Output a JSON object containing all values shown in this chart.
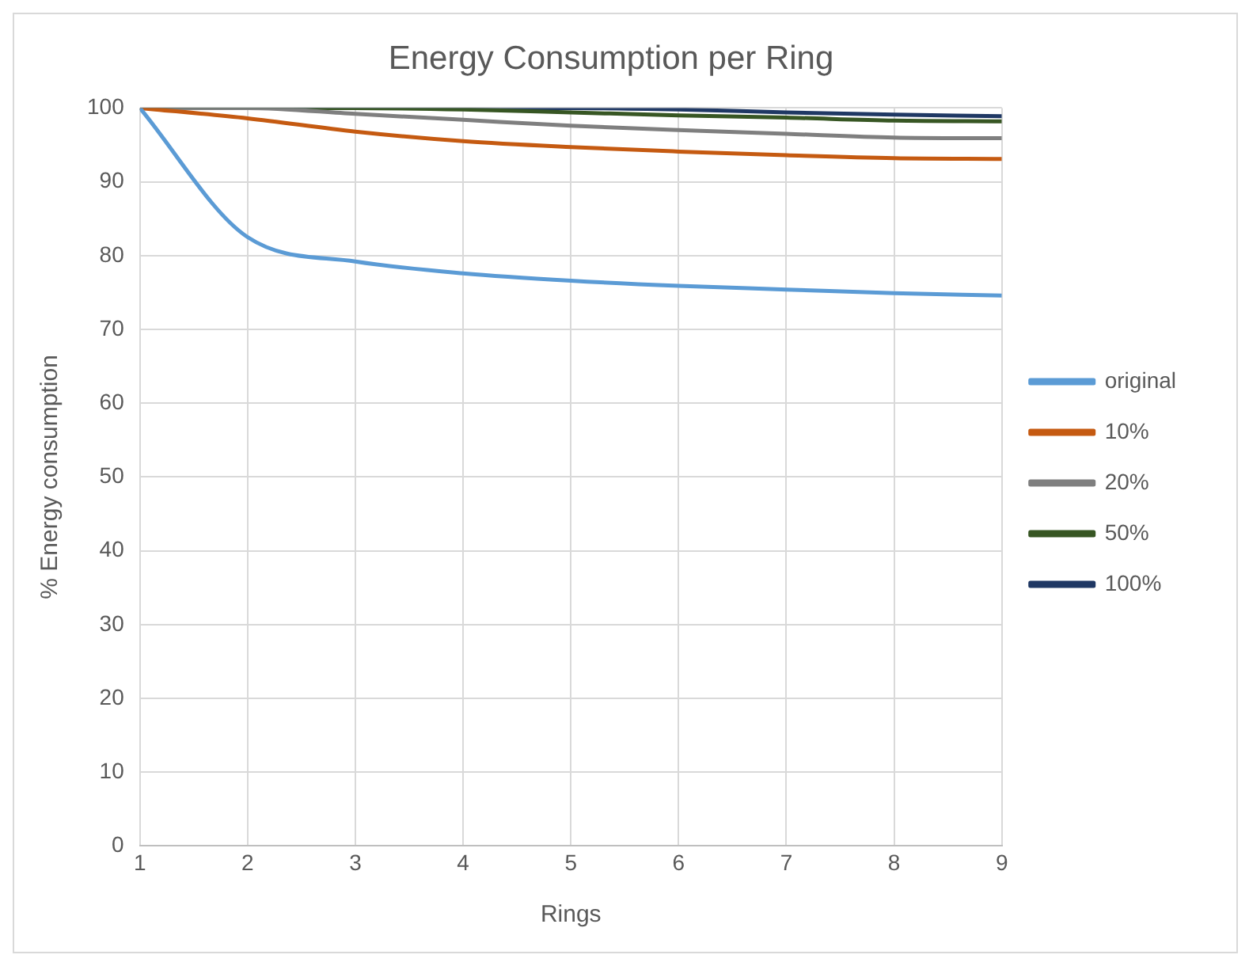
{
  "chart_data": {
    "type": "line",
    "title": "Energy Consumption per Ring",
    "xlabel": "Rings",
    "ylabel": "% Energy consumption",
    "x": [
      1,
      2,
      3,
      4,
      5,
      6,
      7,
      8,
      9
    ],
    "series": [
      {
        "name": "original",
        "color": "#5b9bd5",
        "values": [
          100,
          82.5,
          79.2,
          77.6,
          76.6,
          75.9,
          75.4,
          74.9,
          74.6
        ]
      },
      {
        "name": "10%",
        "color": "#c55a11",
        "values": [
          100,
          98.6,
          96.8,
          95.5,
          94.7,
          94.1,
          93.6,
          93.2,
          93.1
        ]
      },
      {
        "name": "20%",
        "color": "#7f7f7f",
        "values": [
          100,
          100,
          99.2,
          98.4,
          97.6,
          97.0,
          96.5,
          96.0,
          95.9
        ]
      },
      {
        "name": "50%",
        "color": "#375623",
        "values": [
          100,
          100,
          100,
          99.8,
          99.4,
          99.0,
          98.7,
          98.3,
          98.2
        ]
      },
      {
        "name": "100%",
        "color": "#1f3864",
        "values": [
          100,
          100,
          100,
          100,
          100,
          99.8,
          99.4,
          99.1,
          98.9
        ]
      }
    ],
    "xlim": [
      1,
      9
    ],
    "xticks": [
      1,
      2,
      3,
      4,
      5,
      6,
      7,
      8,
      9
    ],
    "ylim": [
      0,
      100
    ],
    "yticks": [
      0,
      10,
      20,
      30,
      40,
      50,
      60,
      70,
      80,
      90,
      100
    ],
    "grid": true,
    "legend": "right",
    "marker": "none",
    "line_style": "solid"
  }
}
